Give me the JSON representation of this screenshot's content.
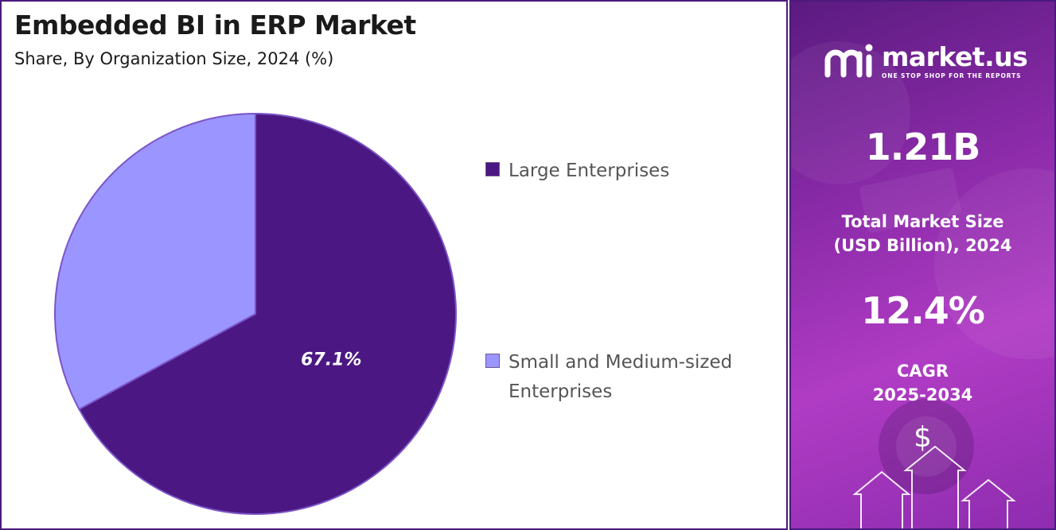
{
  "chart_data": {
    "type": "pie",
    "title": "Embedded BI in ERP Market",
    "subtitle": "Share, By Organization Size, 2024 (%)",
    "categories": [
      "Large Enterprises",
      "Small and Medium-sized Enterprises"
    ],
    "values": [
      67.1,
      32.9
    ],
    "data_labels": [
      "67.1%",
      ""
    ],
    "colors": [
      "#4b1782",
      "#9b95ff"
    ],
    "start_angle_deg": 0,
    "direction": "clockwise",
    "legend_position": "right"
  },
  "legend": {
    "items": [
      {
        "label": "Large Enterprises",
        "color": "#4b1782"
      },
      {
        "label": "Small and Medium-sized Enterprises",
        "color": "#9b95ff"
      }
    ]
  },
  "side_panel": {
    "brand_name": "market.us",
    "brand_tagline": "ONE STOP SHOP FOR THE REPORTS",
    "logo_icon": "market-us-logo-icon",
    "market_size_value": "1.21B",
    "market_size_label_line1": "Total Market Size",
    "market_size_label_line2": "(USD Billion), 2024",
    "cagr_value": "12.4%",
    "cagr_label_line1": "CAGR",
    "cagr_label_line2": "2025-2034",
    "dollar_symbol": "$",
    "decor_icon": "growth-arrows-icon"
  }
}
